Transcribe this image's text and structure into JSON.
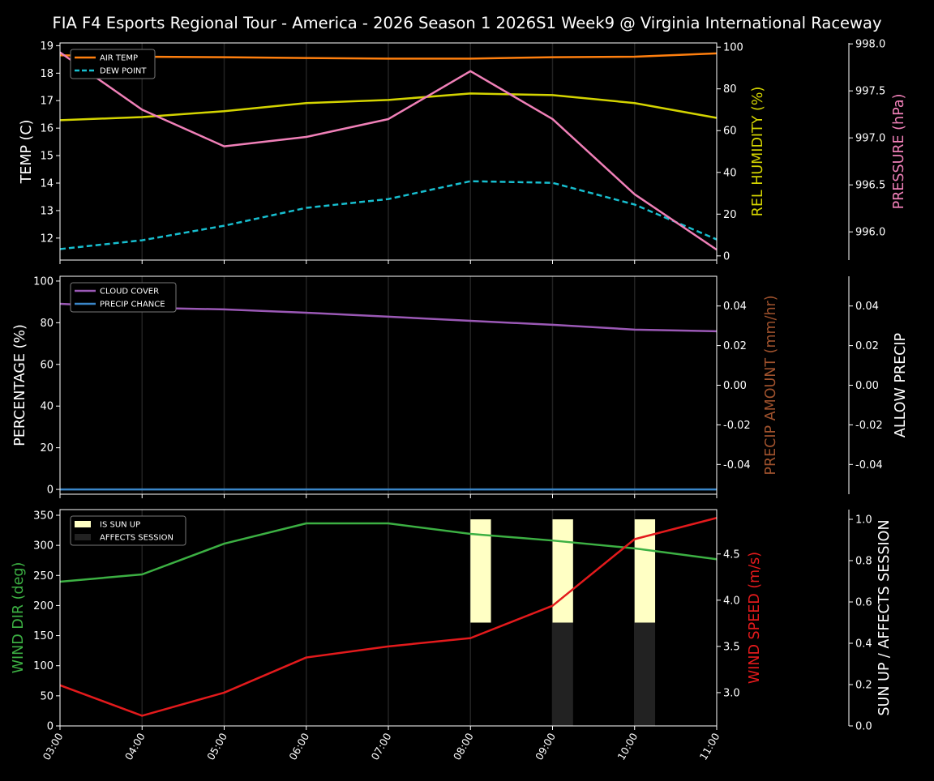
{
  "title": "FIA F4 Esports Regional Tour - America - 2026 Season 1 2026S1 Week9 @ Virginia International Raceway",
  "colors": {
    "background": "#000000",
    "axis": "#ffffff",
    "grid": "#222222"
  },
  "x_ticks": [
    "03:00",
    "04:00",
    "05:00",
    "06:00",
    "07:00",
    "08:00",
    "09:00",
    "10:00",
    "11:00"
  ],
  "chart_data": [
    {
      "type": "line",
      "x": [
        3,
        4,
        5,
        6,
        7,
        8,
        9,
        10,
        11
      ],
      "axes": {
        "left": {
          "label": "TEMP (C)",
          "label_color": "#ffffff",
          "ylim": [
            11.2,
            19.1
          ],
          "ticks": [
            12,
            13,
            14,
            15,
            16,
            17,
            18,
            19
          ],
          "decimals": 0
        },
        "right1": {
          "label": "REL HUMIDITY (%)",
          "label_color": "#d4d400",
          "ylim": [
            -2,
            102
          ],
          "ticks": [
            0,
            20,
            40,
            60,
            80,
            100
          ],
          "decimals": 0
        },
        "right2": {
          "label": "PRESSURE (hPa)",
          "label_color": "#f080b8",
          "ylim": [
            995.7,
            998.01
          ],
          "ticks": [
            996.0,
            996.5,
            997.0,
            997.5,
            998.0
          ],
          "decimals": 1
        }
      },
      "series": [
        {
          "name": "AIR TEMP",
          "axis": "left",
          "color": "#ff7f0e",
          "dash": false,
          "in_legend": true,
          "values": [
            18.65,
            18.6,
            18.58,
            18.55,
            18.53,
            18.53,
            18.58,
            18.6,
            18.72
          ]
        },
        {
          "name": "DEW POINT",
          "axis": "left",
          "color": "#17becf",
          "dash": true,
          "in_legend": true,
          "values": [
            11.6,
            11.92,
            12.45,
            13.1,
            13.42,
            14.07,
            14.01,
            13.22,
            11.95
          ]
        },
        {
          "axis": "right1",
          "color": "#d4d400",
          "dash": false,
          "in_legend": false,
          "values": [
            65,
            66.5,
            69.3,
            73.2,
            74.7,
            77.8,
            77,
            73.2,
            66.1
          ]
        },
        {
          "axis": "right2",
          "color": "#f080b8",
          "dash": false,
          "in_legend": false,
          "values": [
            997.91,
            997.3,
            996.91,
            997.01,
            997.2,
            997.71,
            997.2,
            996.4,
            995.81
          ]
        }
      ],
      "legend": "top-left"
    },
    {
      "type": "line",
      "x": [
        3,
        4,
        5,
        6,
        7,
        8,
        9,
        10,
        11
      ],
      "axes": {
        "left": {
          "label": "PERCENTAGE (%)",
          "label_color": "#ffffff",
          "ylim": [
            -2.3,
            102.3
          ],
          "ticks": [
            0,
            20,
            40,
            60,
            80,
            100
          ],
          "decimals": 0
        },
        "right1": {
          "label": "PRECIP AMOUNT (mm/hr)",
          "label_color": "#a0522d",
          "ylim": [
            -0.055,
            0.055
          ],
          "ticks": [
            -0.04,
            -0.02,
            0.0,
            0.02,
            0.04
          ],
          "decimals": 2
        },
        "right2": {
          "label": "ALLOW PRECIP",
          "label_color": "#ffffff",
          "ylim": [
            -0.055,
            0.055
          ],
          "ticks": [
            -0.04,
            -0.02,
            0.0,
            0.02,
            0.04
          ],
          "decimals": 2
        }
      },
      "series": [
        {
          "name": "CLOUD COVER",
          "axis": "left",
          "color": "#9b59b6",
          "dash": false,
          "in_legend": true,
          "values": [
            89.1,
            87.2,
            86.4,
            84.8,
            82.9,
            80.9,
            79,
            76.7,
            75.9
          ]
        },
        {
          "name": "PRECIP CHANCE",
          "axis": "left",
          "color": "#3a86c8",
          "dash": false,
          "in_legend": true,
          "values": [
            0,
            0,
            0,
            0,
            0,
            0,
            0,
            0,
            0
          ]
        }
      ],
      "legend": "top-left"
    },
    {
      "type": "line",
      "x": [
        3,
        4,
        5,
        6,
        7,
        8,
        9,
        10,
        11
      ],
      "axes": {
        "left": {
          "label": "WIND DIR (deg)",
          "label_color": "#3cb043",
          "ylim": [
            0,
            359.4
          ],
          "ticks": [
            0,
            50,
            100,
            150,
            200,
            250,
            300,
            350
          ],
          "decimals": 0
        },
        "right1": {
          "label": "WIND SPEED (m/s)",
          "label_color": "#e31a1c",
          "ylim": [
            2.64,
            4.98
          ],
          "ticks": [
            3.0,
            3.5,
            4.0,
            4.5
          ],
          "decimals": 1
        },
        "right2": {
          "label": "SUN UP / AFFECTS SESSION",
          "label_color": "#ffffff",
          "ylim": [
            0,
            1.047
          ],
          "ticks": [
            0.0,
            0.2,
            0.4,
            0.6,
            0.8,
            1.0
          ],
          "decimals": 1
        }
      },
      "series": [
        {
          "axis": "left",
          "color": "#3cb043",
          "dash": false,
          "in_legend": false,
          "values": [
            239.6,
            251.7,
            302.8,
            336.5,
            336.5,
            319,
            308,
            295,
            277
          ]
        },
        {
          "axis": "right1",
          "color": "#e31a1c",
          "dash": false,
          "in_legend": false,
          "values": [
            3.08,
            2.75,
            3.0,
            3.38,
            3.5,
            3.59,
            3.94,
            4.66,
            4.89
          ]
        }
      ],
      "bars": [
        {
          "name": "IS SUN UP",
          "axis": "right2",
          "color": "#ffffc4",
          "bottom": 0.5,
          "height": 0.5,
          "x": [
            8,
            9,
            10
          ],
          "width_hours": 0.25
        },
        {
          "name": "AFFECTS SESSION",
          "axis": "right2",
          "color": "#222222",
          "bottom": 0,
          "height": 0.5,
          "x": [
            9,
            10
          ],
          "width_hours": 0.25
        }
      ],
      "legend": "top-left"
    }
  ]
}
